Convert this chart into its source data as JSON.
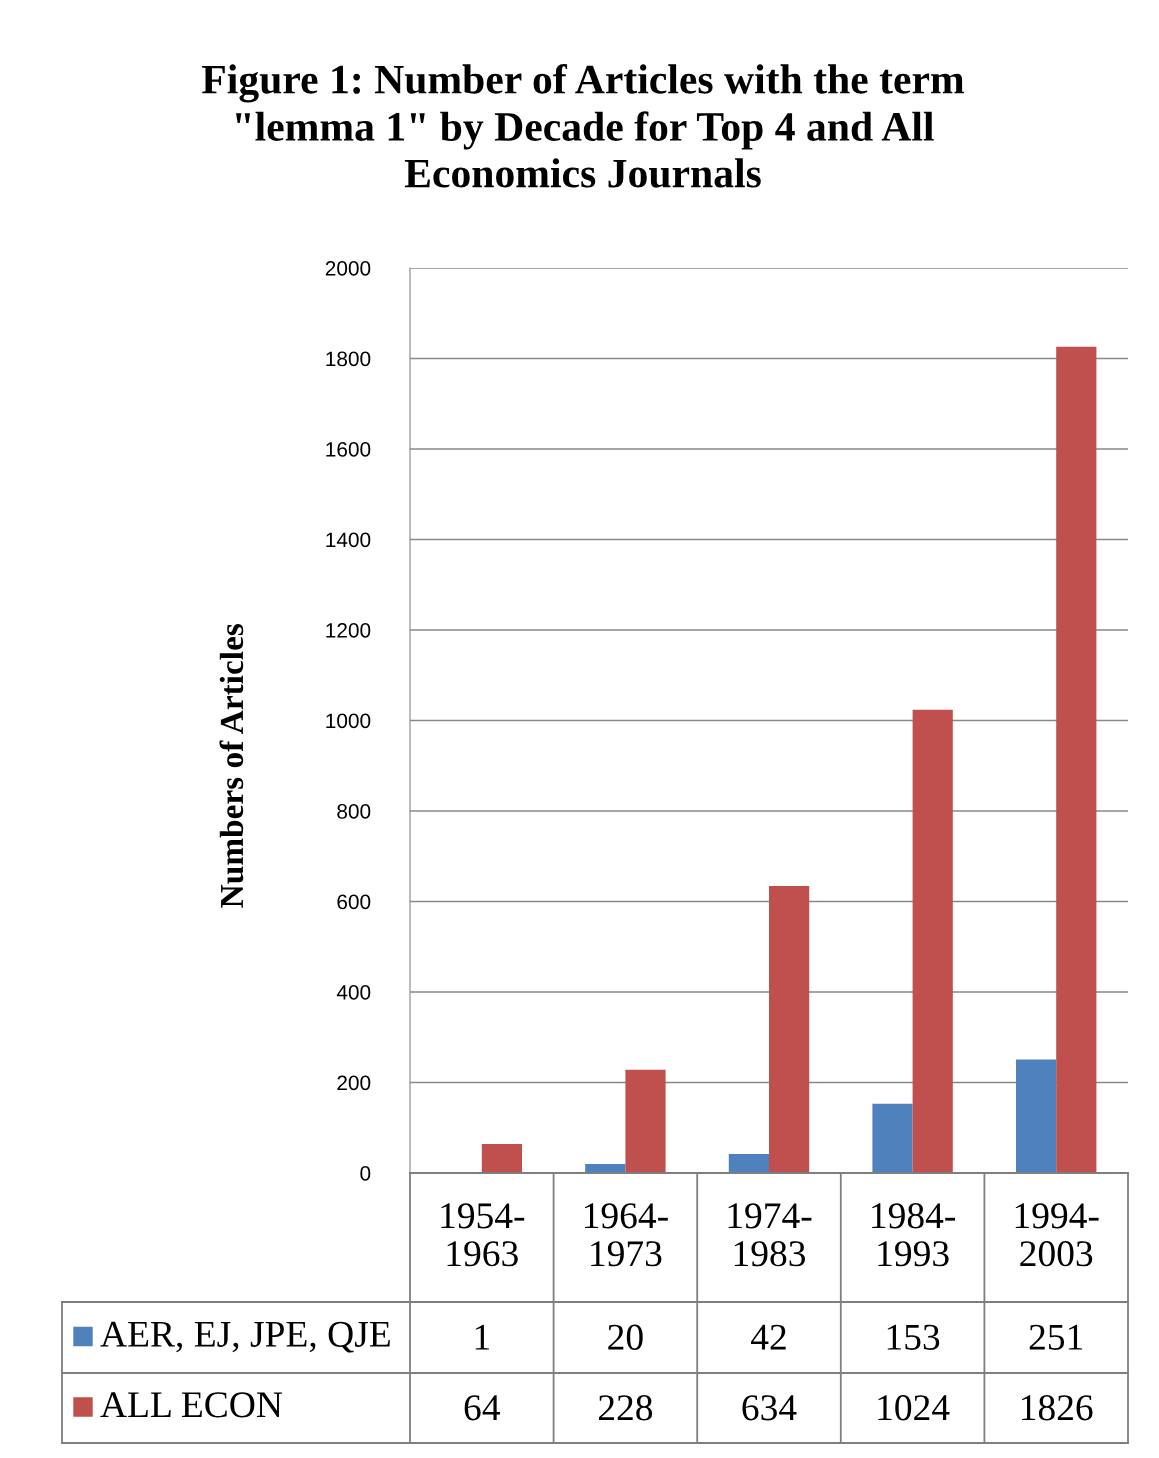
{
  "chart_data": {
    "type": "bar",
    "title": "Figure 1: Number of Articles with the term \"lemma 1\" by Decade for Top 4 and All Economics Journals",
    "ylabel": "Numbers of Articles",
    "categories": [
      "1954-1963",
      "1964-1973",
      "1974-1983",
      "1984-1993",
      "1994-2003"
    ],
    "series": [
      {
        "name": "AER, EJ, JPE, QJE",
        "color": "#4f81bd",
        "values": [
          1,
          20,
          42,
          153,
          251
        ]
      },
      {
        "name": "ALL ECON",
        "color": "#c0504d",
        "values": [
          64,
          228,
          634,
          1024,
          1826
        ]
      }
    ],
    "ylim": [
      0,
      2000
    ],
    "yticks": [
      0,
      200,
      400,
      600,
      800,
      1000,
      1200,
      1400,
      1600,
      1800,
      2000
    ],
    "grid": "y",
    "legend": "bottom",
    "data_labels": true
  }
}
